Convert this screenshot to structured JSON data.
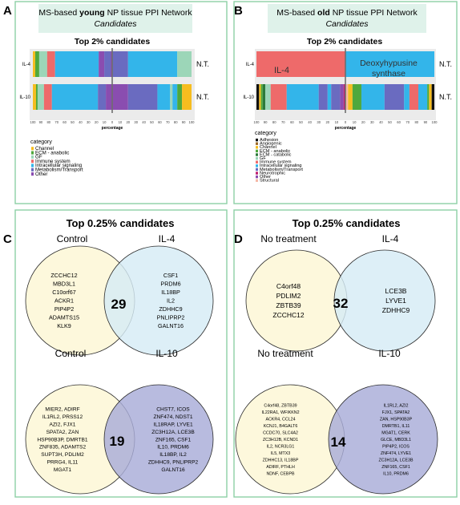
{
  "colors": {
    "panel_border": "#8dcfa6",
    "title_box": "#dff2ea",
    "control_circle": "#fdf8dc",
    "il4_circle": "#d6ecf5",
    "il10_circle": "#a8acd8",
    "bar_divider": "#6e6e6e"
  },
  "panels": {
    "A": {
      "letter": "A",
      "title_prefix": "MS-based ",
      "title_emph": "young",
      "title_suffix": " NP tissue PPI Network",
      "subtitle": "Candidates",
      "chart_title": "Top 2% candidates",
      "xlabel": "percentage",
      "legend_title": "category"
    },
    "B": {
      "letter": "B",
      "title_prefix": "MS-based ",
      "title_emph": "old",
      "title_suffix": " NP tissue PPI Network",
      "subtitle": "Candidates",
      "chart_title": "Top 2% candidates",
      "xlabel": "percentage",
      "legend_title": "category",
      "bar_labels": {
        "il4_left": "IL-4",
        "il4_right_1": "Deoxyhypusine",
        "il4_right_2": "synthase"
      }
    },
    "C": {
      "letter": "C",
      "title": "Top 0.25% candidates",
      "venn_top": {
        "left_label": "Control",
        "right_label": "IL-4",
        "overlap": "29",
        "left_items": [
          "ZCCHC12",
          "MBD3L1",
          "C10orf67",
          "ACKR1",
          "PIP4P2",
          "ADAMTS15",
          "KLK9"
        ],
        "right_items": [
          "CSF1",
          "PRDM6",
          "IL18BP",
          "IL2",
          "ZDHHC9",
          "PNLIPRP2",
          "GALNT16"
        ]
      },
      "venn_bottom": {
        "left_label": "Control",
        "right_label": "IL-10",
        "overlap": "19",
        "left_items": [
          "MIER2, ADIRF",
          "IL1RL2, PRSS12",
          "AZI2, FJX1",
          "SPATA2, ZAN",
          "HSP90B3P, DMRTB1",
          "ZNF835, ADAMTS2",
          "SUPT3H, PDLIM2",
          "PRRG4, IL11",
          "MGAT1"
        ],
        "right_items": [
          "CHST7, ICOS",
          "ZNF474, NDST1",
          "IL18RAP, LYVE1",
          "ZC3H12A, LCE3B",
          "ZNF165, CSF1",
          "IL10, PRDM6",
          "IL18BP, IL2",
          "ZDHHC9, PNLIPRP2",
          "GALNT16"
        ]
      }
    },
    "D": {
      "letter": "D",
      "title": "Top 0.25% candidates",
      "venn_top": {
        "left_label": "No treatment",
        "right_label": "IL-4",
        "overlap": "32",
        "left_items": [
          "C4orf48",
          "PDLIM2",
          "ZBTB39",
          "ZCCHC12"
        ],
        "right_items": [
          "LCE3B",
          "LYVE1",
          "ZDHHC9"
        ]
      },
      "venn_bottom": {
        "left_label": "No treatment",
        "right_label": "IL-10",
        "overlap": "14",
        "left_items": [
          "C4orf48, ZBTB39",
          "IL22RA1, WFIKKN2",
          "ACKR4, CCL24",
          "KCNJ1, B4GALT6",
          "CCDC70, SLC4A2",
          "ZC3H12B, KCND1",
          "IL2, NCR3LG1",
          "IL5, MTX3",
          "ZDHHC13, IL18BP",
          "ADIRF, PTHLH",
          "NDNF, CEBPB"
        ],
        "right_items": [
          "IL1RL2, AZI2",
          "FJX1, SPATA2",
          "ZAN, HSP90B3P",
          "DMRTB1, IL11",
          "MGAT1, CERK",
          "GLCE, MBD3L1",
          "PIP4P2, ICOS",
          "ZNF474, LYVE1",
          "ZC3H12A, LCE3B",
          "ZNF165, CSF1",
          "IL10, PRDM6"
        ]
      }
    }
  },
  "chart_data": [
    {
      "id": "A",
      "type": "bar",
      "orientation": "horizontal-stacked",
      "title": "Top 2% candidates",
      "xlabel": "percentage",
      "x_ticks": [
        "100",
        "90",
        "80",
        "70",
        "60",
        "50",
        "40",
        "30",
        "20",
        "10",
        "0",
        "10",
        "20",
        "30",
        "40",
        "50",
        "60",
        "70",
        "80",
        "90",
        "100"
      ],
      "legend": [
        {
          "name": "Channel",
          "color": "#f6bd1f"
        },
        {
          "name": "ECM - anabolic",
          "color": "#4fa83d"
        },
        {
          "name": "GF",
          "color": "#9cd6b8"
        },
        {
          "name": "Immune system",
          "color": "#ee6a6a"
        },
        {
          "name": "Intracellular signaling",
          "color": "#33b5ea"
        },
        {
          "name": "Metabolism/Transport",
          "color": "#6a6bc0"
        },
        {
          "name": "Other",
          "color": "#8a4db0"
        }
      ],
      "rows": [
        {
          "label": "IL-4",
          "right_label": "N.T.",
          "segments": [
            {
              "start": -100,
              "end": -97,
              "color": "#f6bd1f"
            },
            {
              "start": -97,
              "end": -92,
              "color": "#4fa83d"
            },
            {
              "start": -92,
              "end": -82,
              "color": "#9cd6b8"
            },
            {
              "start": -82,
              "end": -72,
              "color": "#ee6a6a"
            },
            {
              "start": -72,
              "end": -17,
              "color": "#33b5ea"
            },
            {
              "start": -17,
              "end": -10,
              "color": "#8a4db0"
            },
            {
              "start": -10,
              "end": -2,
              "color": "#6a6bc0"
            },
            {
              "start": -2,
              "end": 0,
              "color": "#8a4db0"
            },
            {
              "start": 0,
              "end": 20,
              "color": "#6a6bc0"
            },
            {
              "start": 20,
              "end": 82,
              "color": "#33b5ea"
            },
            {
              "start": 82,
              "end": 100,
              "color": "#9cd6b8"
            }
          ]
        },
        {
          "label": "IL-10",
          "right_label": "N.T.",
          "segments": [
            {
              "start": -100,
              "end": -96,
              "color": "#f6bd1f"
            },
            {
              "start": -96,
              "end": -94,
              "color": "#4fa83d"
            },
            {
              "start": -94,
              "end": -86,
              "color": "#9cd6b8"
            },
            {
              "start": -86,
              "end": -76,
              "color": "#ee6a6a"
            },
            {
              "start": -76,
              "end": -18,
              "color": "#33b5ea"
            },
            {
              "start": -18,
              "end": -8,
              "color": "#6a6bc0"
            },
            {
              "start": -8,
              "end": 0,
              "color": "#8a4db0"
            },
            {
              "start": 0,
              "end": 20,
              "color": "#8a4db0"
            },
            {
              "start": 20,
              "end": 57,
              "color": "#6a6bc0"
            },
            {
              "start": 57,
              "end": 73,
              "color": "#33b5ea"
            },
            {
              "start": 73,
              "end": 76,
              "color": "#9cd6b8"
            },
            {
              "start": 76,
              "end": 82,
              "color": "#33b5ea"
            },
            {
              "start": 82,
              "end": 88,
              "color": "#4fa83d"
            },
            {
              "start": 88,
              "end": 100,
              "color": "#f6bd1f"
            }
          ]
        }
      ]
    },
    {
      "id": "B",
      "type": "bar",
      "orientation": "horizontal-stacked",
      "title": "Top 2% candidates",
      "xlabel": "percentage",
      "x_ticks": [
        "100",
        "90",
        "80",
        "70",
        "60",
        "50",
        "40",
        "30",
        "20",
        "10",
        "0",
        "10",
        "20",
        "30",
        "40",
        "50",
        "60",
        "70",
        "80",
        "90",
        "100"
      ],
      "legend": [
        {
          "name": "Adhesion",
          "color": "#111111"
        },
        {
          "name": "Angiogenic",
          "color": "#9b6a2a"
        },
        {
          "name": "Channel",
          "color": "#f6bd1f"
        },
        {
          "name": "ECM - anabolic",
          "color": "#4fa83d"
        },
        {
          "name": "ECM - catabolic",
          "color": "#2c7a3a"
        },
        {
          "name": "GF",
          "color": "#9cd6b8"
        },
        {
          "name": "Immune system",
          "color": "#ee6a6a"
        },
        {
          "name": "Intracellular signaling",
          "color": "#33b5ea"
        },
        {
          "name": "Metabolism/Transport",
          "color": "#6a6bc0"
        },
        {
          "name": "Neurotrophic",
          "color": "#c0206f"
        },
        {
          "name": "Other",
          "color": "#8a4db0"
        },
        {
          "name": "Structural",
          "color": "#f6b8a6"
        }
      ],
      "rows": [
        {
          "label": "IL-4",
          "right_label": "N.T.",
          "segments": [
            {
              "start": -100,
              "end": 0,
              "color": "#ee6a6a"
            },
            {
              "start": 0,
              "end": 100,
              "color": "#33b5ea"
            }
          ]
        },
        {
          "label": "IL-10",
          "right_label": "N.T.",
          "segments": [
            {
              "start": -100,
              "end": -97,
              "color": "#111111"
            },
            {
              "start": -97,
              "end": -95,
              "color": "#f6bd1f"
            },
            {
              "start": -95,
              "end": -93,
              "color": "#4fa83d"
            },
            {
              "start": -93,
              "end": -90,
              "color": "#2c7a3a"
            },
            {
              "start": -90,
              "end": -84,
              "color": "#9cd6b8"
            },
            {
              "start": -84,
              "end": -66,
              "color": "#ee6a6a"
            },
            {
              "start": -66,
              "end": -30,
              "color": "#33b5ea"
            },
            {
              "start": -30,
              "end": -20,
              "color": "#6a6bc0"
            },
            {
              "start": -20,
              "end": -16,
              "color": "#33b5ea"
            },
            {
              "start": -16,
              "end": -6,
              "color": "#6a6bc0"
            },
            {
              "start": -6,
              "end": -2,
              "color": "#8a4db0"
            },
            {
              "start": -2,
              "end": 0,
              "color": "#c0206f"
            },
            {
              "start": 0,
              "end": 3,
              "color": "#f6b8a6"
            },
            {
              "start": 3,
              "end": 8,
              "color": "#f6bd1f"
            },
            {
              "start": 8,
              "end": 18,
              "color": "#4fa83d"
            },
            {
              "start": 18,
              "end": 44,
              "color": "#33b5ea"
            },
            {
              "start": 44,
              "end": 66,
              "color": "#6a6bc0"
            },
            {
              "start": 66,
              "end": 72,
              "color": "#33b5ea"
            },
            {
              "start": 72,
              "end": 82,
              "color": "#ee6a6a"
            },
            {
              "start": 82,
              "end": 92,
              "color": "#33b5ea"
            },
            {
              "start": 92,
              "end": 94,
              "color": "#4fa83d"
            },
            {
              "start": 94,
              "end": 97,
              "color": "#f6bd1f"
            },
            {
              "start": 97,
              "end": 100,
              "color": "#111111"
            }
          ]
        }
      ]
    }
  ]
}
